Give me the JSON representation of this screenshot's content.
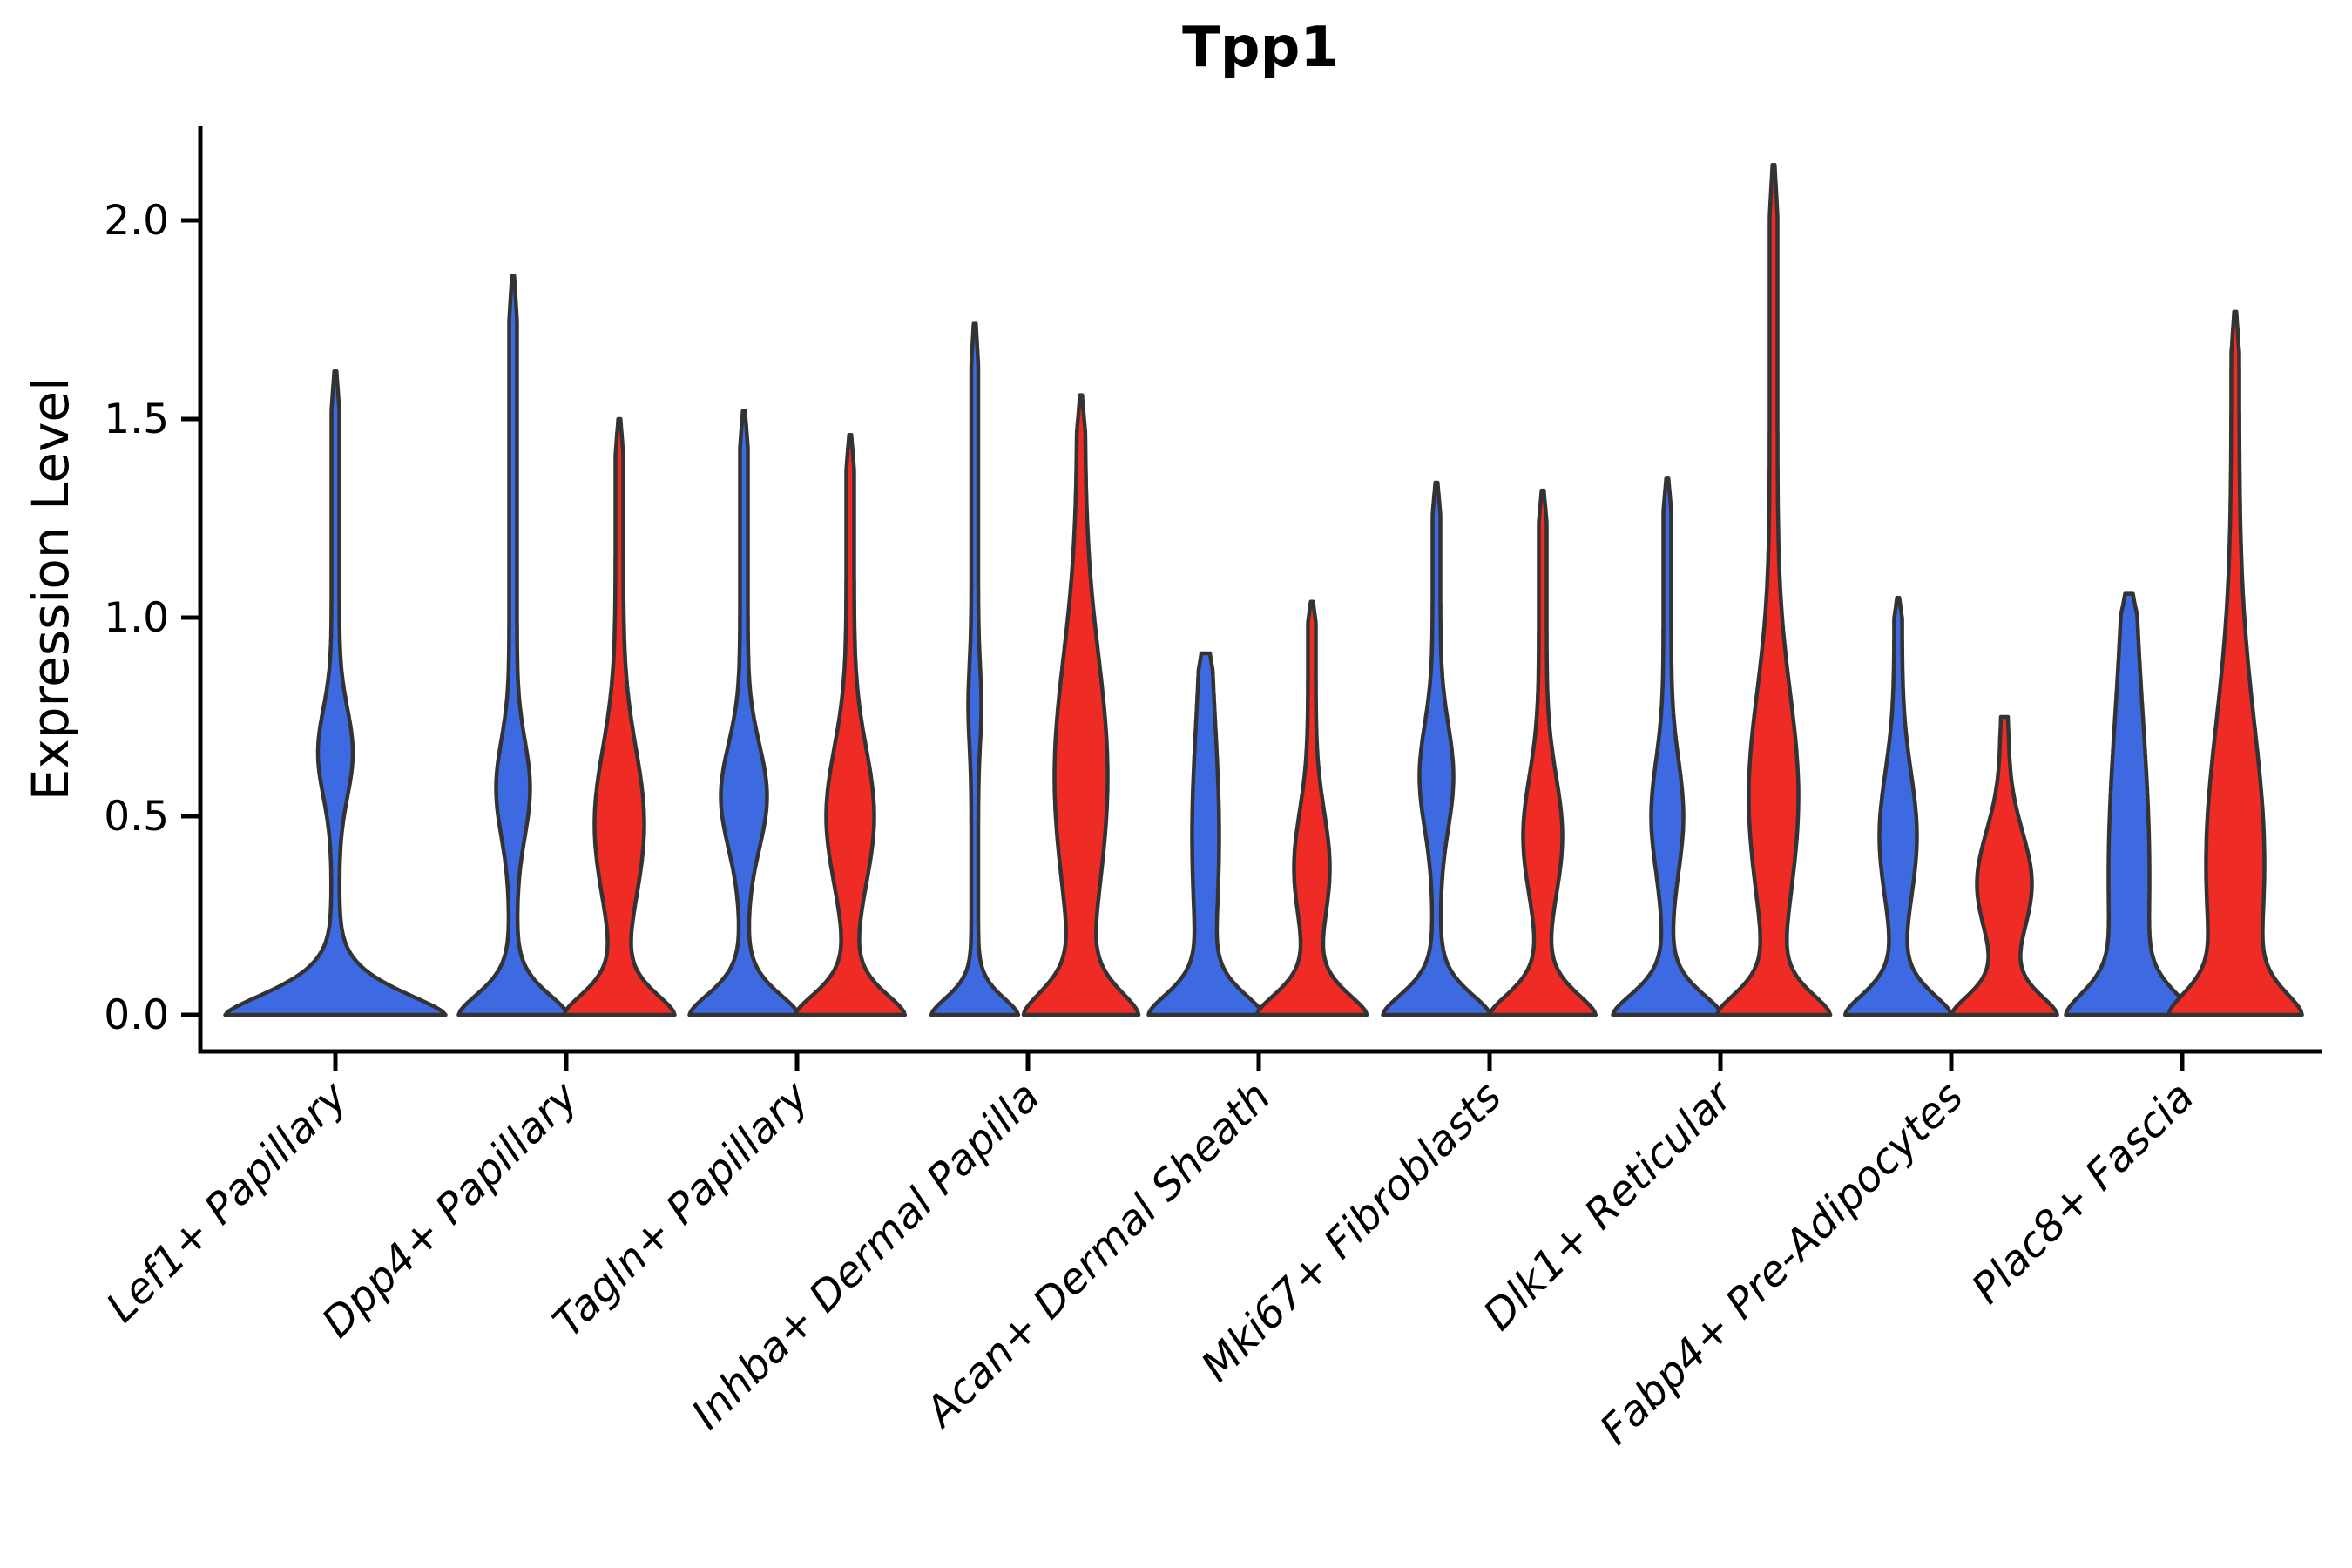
{
  "chart_data": {
    "type": "violin",
    "title": "Tpp1",
    "xlabel": "",
    "ylabel": "Expression Level",
    "yticks": [
      "0.0",
      "0.5",
      "1.0",
      "1.5",
      "2.0"
    ],
    "ytick_values": [
      0.0,
      0.5,
      1.0,
      1.5,
      2.0
    ],
    "ylim": [
      -0.09,
      2.24
    ],
    "grid": false,
    "legend": "none",
    "categories": [
      "Lef1+ Papillary",
      "Dpp4+ Papillary",
      "Tagln+ Papillary",
      "Inhba+ Dermal Papilla",
      "Acan+ Dermal Sheath",
      "Mki67+ Fibroblasts",
      "Dlk1+ Reticular",
      "Fabp4+ Pre-Adipocytes",
      "Plac8+ Fascia"
    ],
    "colors": {
      "blue_fill": "#3D6AE1",
      "red_fill": "#EE2B24",
      "edge": "#333333",
      "axis": "#000000"
    },
    "violins": [
      {
        "category": "Lef1+ Papillary",
        "parts": [
          {
            "split": "blue",
            "max_expression": 1.62,
            "density_profile": {
              "foot": 122,
              "fd": 0.09,
              "fp": 1.5,
              "stem": 4.5,
              "bulge": 15.5,
              "bc": 0.66,
              "bs": 0.11,
              "tip": 1.3,
              "tiplen": 0.06
            }
          }
        ]
      },
      {
        "category": "Dpp4+ Papillary",
        "parts": [
          {
            "split": "blue",
            "max_expression": 1.86,
            "density_profile": {
              "foot": 58,
              "fd": 0.085,
              "fp": 1.6,
              "stem": 4.5,
              "bulge": 15,
              "bc": 0.57,
              "bs": 0.12,
              "tip": 1.3,
              "tiplen": 0.06
            }
          },
          {
            "split": "red",
            "max_expression": 1.5,
            "density_profile": {
              "foot": 58,
              "fd": 0.085,
              "fp": 1.6,
              "stem": 4.5,
              "bulge": 24,
              "bc": 0.48,
              "bs": 0.19,
              "tip": 1.3,
              "tiplen": 0.06
            }
          }
        ]
      },
      {
        "category": "Tagln+ Papillary",
        "parts": [
          {
            "split": "blue",
            "max_expression": 1.52,
            "density_profile": {
              "foot": 58,
              "fd": 0.085,
              "fp": 1.6,
              "stem": 4.5,
              "bulge": 22,
              "bc": 0.55,
              "bs": 0.13,
              "tip": 1.3,
              "tiplen": 0.06
            }
          },
          {
            "split": "red",
            "max_expression": 1.46,
            "density_profile": {
              "foot": 58,
              "fd": 0.085,
              "fp": 1.6,
              "stem": 4.5,
              "bulge": 23,
              "bc": 0.5,
              "bs": 0.17,
              "tip": 1.3,
              "tiplen": 0.06
            }
          }
        ]
      },
      {
        "category": "Inhba+ Dermal Papilla",
        "parts": [
          {
            "split": "blue",
            "max_expression": 1.74,
            "density_profile": {
              "foot": 46,
              "fd": 0.07,
              "fp": 1.6,
              "stem": 4.0,
              "bulge": 3.5,
              "bc": 0.78,
              "bs": 0.1,
              "tip": 1.3,
              "tiplen": 0.06
            }
          },
          {
            "split": "red",
            "max_expression": 1.56,
            "density_profile": {
              "foot": 58,
              "fd": 0.095,
              "fp": 1.6,
              "stem": 4.5,
              "bulge": 26,
              "bc": 0.6,
              "bs": 0.3,
              "tip": 1.3,
              "tiplen": 0.06
            }
          }
        ]
      },
      {
        "category": "Acan+ Dermal Sheath",
        "parts": [
          {
            "split": "blue",
            "max_expression": 0.91,
            "density_profile": {
              "foot": 58,
              "fd": 0.085,
              "fp": 1.6,
              "stem": 4.5,
              "bulge": 11,
              "bc": 0.45,
              "bs": 0.28,
              "tip": 5.0,
              "tiplen": 0.04
            }
          },
          {
            "split": "red",
            "max_expression": 1.04,
            "density_profile": {
              "foot": 58,
              "fd": 0.085,
              "fp": 1.6,
              "stem": 4.5,
              "bulge": 16,
              "bc": 0.37,
              "bs": 0.14,
              "tip": 1.3,
              "tiplen": 0.05
            }
          }
        ]
      },
      {
        "category": "Mki67+ Fibroblasts",
        "parts": [
          {
            "split": "blue",
            "max_expression": 1.34,
            "density_profile": {
              "foot": 57,
              "fd": 0.085,
              "fp": 1.6,
              "stem": 4.5,
              "bulge": 15,
              "bc": 0.6,
              "bs": 0.13,
              "tip": 1.3,
              "tiplen": 0.06
            }
          },
          {
            "split": "red",
            "max_expression": 1.32,
            "density_profile": {
              "foot": 56,
              "fd": 0.085,
              "fp": 1.6,
              "stem": 4.5,
              "bulge": 18,
              "bc": 0.45,
              "bs": 0.15,
              "tip": 1.3,
              "tiplen": 0.06
            }
          }
        ]
      },
      {
        "category": "Dlk1+ Reticular",
        "parts": [
          {
            "split": "blue",
            "max_expression": 1.35,
            "density_profile": {
              "foot": 58,
              "fd": 0.085,
              "fp": 1.6,
              "stem": 4.5,
              "bulge": 14,
              "bc": 0.5,
              "bs": 0.14,
              "tip": 1.3,
              "tiplen": 0.06
            }
          },
          {
            "split": "red",
            "max_expression": 2.14,
            "density_profile": {
              "foot": 58,
              "fd": 0.085,
              "fp": 1.6,
              "stem": 4.5,
              "bulge": 24,
              "bc": 0.55,
              "bs": 0.26,
              "tip": 1.3,
              "tiplen": 0.06
            }
          }
        ]
      },
      {
        "category": "Fabp4+ Pre-Adipocytes",
        "parts": [
          {
            "split": "blue",
            "max_expression": 1.05,
            "density_profile": {
              "foot": 56,
              "fd": 0.085,
              "fp": 1.6,
              "stem": 4.5,
              "bulge": 17,
              "bc": 0.45,
              "bs": 0.16,
              "tip": 1.3,
              "tiplen": 0.05
            }
          },
          {
            "split": "red",
            "max_expression": 0.75,
            "density_profile": {
              "foot": 55,
              "fd": 0.08,
              "fp": 1.6,
              "stem": 4.5,
              "bulge": 27,
              "bc": 0.33,
              "bs": 0.13,
              "tip": 4.0,
              "tiplen": 0.05
            }
          }
        ]
      },
      {
        "category": "Plac8+ Fascia",
        "parts": [
          {
            "split": "blue",
            "max_expression": 1.06,
            "density_profile": {
              "foot": 55,
              "fd": 0.09,
              "fp": 1.6,
              "stem": 4.5,
              "bulge": 19,
              "bc": 0.35,
              "bs": 0.4,
              "tip": 4.5,
              "tiplen": 0.05
            }
          },
          {
            "split": "red",
            "max_expression": 1.77,
            "density_profile": {
              "foot": 56,
              "fd": 0.09,
              "fp": 1.6,
              "stem": 4.5,
              "bulge": 29,
              "bc": 0.38,
              "bs": 0.35,
              "tip": 1.3,
              "tiplen": 0.06
            }
          }
        ]
      }
    ]
  }
}
